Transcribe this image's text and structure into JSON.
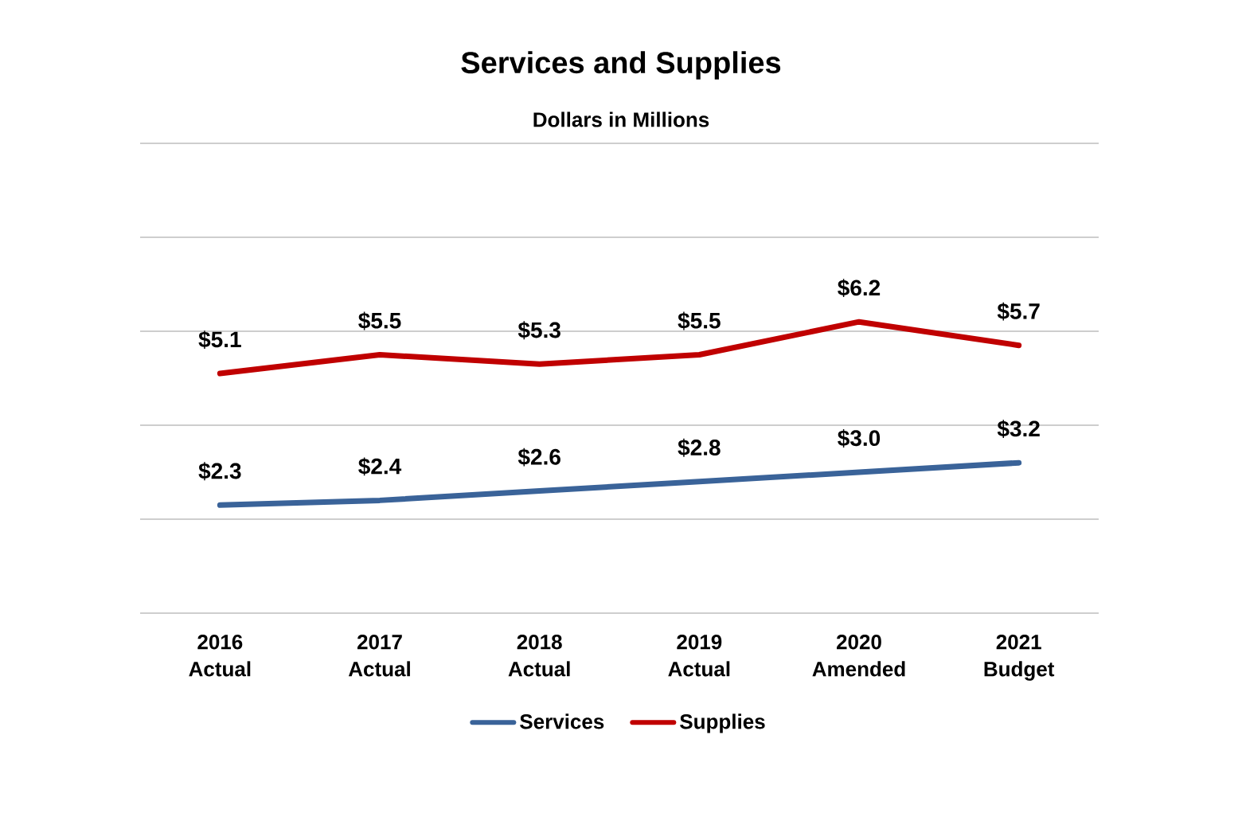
{
  "chart_data": {
    "type": "line",
    "title": "Services and Supplies",
    "subtitle": "Dollars in Millions",
    "categories": [
      "2016 Actual",
      "2017 Actual",
      "2018 Actual",
      "2019 Actual",
      "2020 Amended",
      "2021 Budget"
    ],
    "series": [
      {
        "name": "Services",
        "color": "#3a6399",
        "values": [
          2.3,
          2.4,
          2.6,
          2.8,
          3.0,
          3.2
        ],
        "value_labels": [
          "$2.3",
          "$2.4",
          "$2.6",
          "$2.8",
          "$3.0",
          "$3.2"
        ]
      },
      {
        "name": "Supplies",
        "color": "#c00000",
        "values": [
          5.1,
          5.5,
          5.3,
          5.5,
          6.2,
          5.7
        ],
        "value_labels": [
          "$5.1",
          "$5.5",
          "$5.3",
          "$5.5",
          "$6.2",
          "$5.7"
        ]
      }
    ],
    "ylim": [
      0,
      10
    ],
    "yticks": [
      {
        "value": 0,
        "label": null
      },
      {
        "value": 2,
        "label": null
      },
      {
        "value": 4,
        "label": null
      },
      {
        "value": 6,
        "label": null
      },
      {
        "value": 8,
        "label": null
      },
      {
        "value": 10,
        "label": null
      }
    ],
    "grid": "y",
    "legend": "bottom",
    "marker": "none",
    "line_style": "solid",
    "tick_labels": "x"
  }
}
